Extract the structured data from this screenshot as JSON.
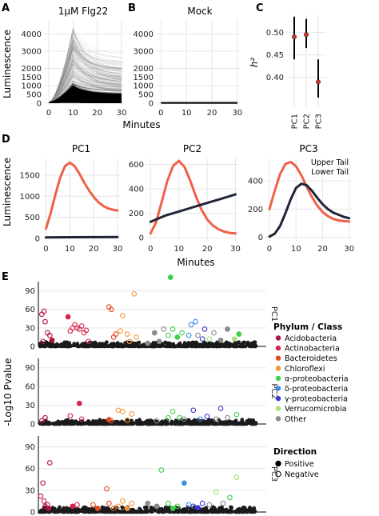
{
  "panel_labels": {
    "A": "A",
    "B": "B",
    "C": "C",
    "D": "D",
    "E": "E"
  },
  "colors": {
    "upper": "#f0604a",
    "lower": "#1e2537",
    "ink": "#111111",
    "grid": "#e6e6e6"
  },
  "chart_data": [
    {
      "id": "A",
      "type": "line",
      "title": "1µM Flg22",
      "xlabel": "",
      "ylabel": "Luminescence",
      "xlim": [
        -2,
        31
      ],
      "ylim": [
        -150,
        4800
      ],
      "xticks": [
        0,
        10,
        20,
        30
      ],
      "yticks": [
        0,
        500,
        1000,
        1500,
        2000,
        3000,
        4000
      ],
      "description_values": {
        "peak_minute": 10,
        "max_trace": 4300,
        "dense_band_max": 1000
      }
    },
    {
      "id": "B",
      "type": "line",
      "title": "Mock",
      "xlabel": "",
      "ylabel": "",
      "xlim": [
        -2,
        31
      ],
      "ylim": [
        -150,
        4800
      ],
      "xticks": [
        0,
        10,
        20,
        30
      ],
      "yticks": [
        0,
        500,
        1000,
        1500,
        2000,
        3000,
        4000
      ],
      "description_values": {
        "flat_level": 60
      }
    },
    {
      "id": "AB-shared",
      "type": "axis",
      "xlabel": "Minutes"
    },
    {
      "id": "C",
      "type": "scatter",
      "ylabel": "h²",
      "categories": [
        "PC1",
        "PC2",
        "PC3"
      ],
      "values": [
        0.49,
        0.495,
        0.39
      ],
      "error_low": [
        0.44,
        0.465,
        0.355
      ],
      "error_high": [
        0.535,
        0.53,
        0.44
      ],
      "ylim": [
        0.33,
        0.54
      ],
      "yticks": [
        0.4,
        0.45,
        0.5
      ]
    },
    {
      "id": "D1",
      "type": "line",
      "title": "PC1",
      "ylabel": "Luminescence",
      "xlim": [
        -1.5,
        31
      ],
      "ylim": [
        -60,
        1900
      ],
      "xticks": [
        0,
        10,
        20,
        30
      ],
      "yticks": [
        0,
        500,
        1000,
        1500
      ],
      "series": [
        {
          "name": "Upper Tail",
          "color_key": "upper",
          "x": [
            0,
            2,
            4,
            6,
            8,
            10,
            12,
            14,
            16,
            18,
            20,
            22,
            24,
            26,
            28,
            30
          ],
          "y": [
            230,
            600,
            1050,
            1450,
            1720,
            1800,
            1720,
            1540,
            1330,
            1140,
            980,
            860,
            770,
            710,
            680,
            660
          ]
        },
        {
          "name": "Lower Tail",
          "color_key": "lower",
          "x": [
            0,
            10,
            20,
            30
          ],
          "y": [
            20,
            25,
            28,
            30
          ]
        }
      ]
    },
    {
      "id": "D2",
      "type": "line",
      "title": "PC2",
      "ylabel": "",
      "xlim": [
        -1.5,
        31
      ],
      "ylim": [
        -25,
        650
      ],
      "xticks": [
        0,
        10,
        20,
        30
      ],
      "yticks": [
        0,
        200,
        400,
        600
      ],
      "series": [
        {
          "name": "Upper Tail",
          "color_key": "upper",
          "x": [
            0,
            2,
            4,
            6,
            8,
            10,
            12,
            14,
            16,
            18,
            20,
            22,
            24,
            26,
            28,
            30
          ],
          "y": [
            35,
            130,
            300,
            470,
            590,
            630,
            580,
            470,
            340,
            230,
            150,
            100,
            70,
            50,
            40,
            35
          ]
        },
        {
          "name": "Lower Tail",
          "color_key": "lower",
          "x": [
            0,
            5,
            10,
            15,
            20,
            25,
            30
          ],
          "y": [
            130,
            180,
            215,
            250,
            285,
            320,
            355
          ]
        }
      ]
    },
    {
      "id": "D3",
      "type": "line",
      "title": "PC3",
      "ylabel": "",
      "xlim": [
        -1.5,
        31
      ],
      "ylim": [
        -25,
        560
      ],
      "xticks": [
        0,
        10,
        20,
        30
      ],
      "yticks": [
        0,
        200,
        400
      ],
      "legend": {
        "position": "top-right",
        "entries": [
          "Upper Tail",
          "Lower Tail"
        ]
      },
      "series": [
        {
          "name": "Upper Tail",
          "color_key": "upper",
          "x": [
            0,
            2,
            4,
            6,
            8,
            10,
            12,
            14,
            16,
            18,
            20,
            22,
            24,
            26,
            28,
            30
          ],
          "y": [
            200,
            330,
            450,
            520,
            535,
            505,
            440,
            360,
            285,
            225,
            180,
            150,
            130,
            120,
            115,
            112
          ]
        },
        {
          "name": "Lower Tail",
          "color_key": "lower",
          "x": [
            0,
            2,
            4,
            6,
            8,
            10,
            12,
            14,
            16,
            18,
            20,
            22,
            24,
            26,
            28,
            30
          ],
          "y": [
            5,
            25,
            80,
            170,
            270,
            350,
            380,
            370,
            330,
            280,
            235,
            200,
            175,
            160,
            145,
            135
          ]
        }
      ]
    },
    {
      "id": "D-shared",
      "type": "axis",
      "xlabel": "Minutes"
    },
    {
      "id": "E",
      "type": "scatter",
      "ylabel": "-Log10 Pvalue",
      "xlim": [
        0,
        100
      ],
      "ylim": [
        0,
        105
      ],
      "yticks": [
        0,
        30,
        60,
        90
      ],
      "facets": [
        "PC1",
        "PC2",
        "PC3"
      ],
      "legend_phylum_title": "Phylum / Class",
      "phyla": [
        {
          "name": "Acidobacteria",
          "color": "#b3123b"
        },
        {
          "name": "Actinobacteria",
          "color": "#d6244e"
        },
        {
          "name": "Bacteroidetes",
          "color": "#e24a1f"
        },
        {
          "name": "Chloroflexi",
          "color": "#f5963c"
        },
        {
          "name": "α-proteobacteria",
          "color": "#3fd04a"
        },
        {
          "name": "δ-proteobacteria",
          "color": "#3a8ee6"
        },
        {
          "name": "γ-proteobacteria",
          "color": "#3a3ad0"
        },
        {
          "name": "Verrucomicrobia",
          "color": "#a8e07a"
        },
        {
          "name": "Other",
          "color": "#8a8a8a"
        }
      ],
      "legend_direction_title": "Direction",
      "directions": [
        {
          "name": "Positive",
          "filled": true
        },
        {
          "name": "Negative",
          "filled": false
        }
      ],
      "points": {
        "PC1": [
          [
            1.5,
            52,
            0,
            0
          ],
          [
            2.5,
            57,
            0,
            0
          ],
          [
            3,
            40,
            0,
            0
          ],
          [
            4,
            22,
            0,
            0
          ],
          [
            5,
            18,
            0,
            0
          ],
          [
            2,
            8,
            0,
            0
          ],
          [
            6,
            10,
            0,
            1
          ],
          [
            13,
            48,
            1,
            1
          ],
          [
            14,
            25,
            1,
            0
          ],
          [
            15,
            30,
            1,
            0
          ],
          [
            16,
            35,
            1,
            0
          ],
          [
            17,
            30,
            1,
            0
          ],
          [
            18,
            28,
            1,
            0
          ],
          [
            19,
            33,
            1,
            0
          ],
          [
            20,
            22,
            1,
            0
          ],
          [
            21,
            26,
            1,
            0
          ],
          [
            22,
            8,
            1,
            0
          ],
          [
            31,
            64,
            2,
            0
          ],
          [
            32,
            60,
            2,
            0
          ],
          [
            33,
            15,
            2,
            0
          ],
          [
            34,
            20,
            2,
            0
          ],
          [
            36,
            25,
            3,
            0
          ],
          [
            37,
            50,
            3,
            0
          ],
          [
            39,
            20,
            3,
            0
          ],
          [
            40,
            8,
            3,
            0
          ],
          [
            42,
            85,
            3,
            0
          ],
          [
            43,
            15,
            3,
            0
          ],
          [
            48,
            5,
            8,
            1
          ],
          [
            51,
            22,
            8,
            1
          ],
          [
            53,
            8,
            8,
            1
          ],
          [
            55,
            28,
            8,
            0
          ],
          [
            57,
            18,
            4,
            0
          ],
          [
            58,
            112,
            4,
            1
          ],
          [
            59,
            28,
            4,
            0
          ],
          [
            61,
            15,
            4,
            1
          ],
          [
            63,
            22,
            4,
            0
          ],
          [
            66,
            18,
            5,
            0
          ],
          [
            67,
            35,
            5,
            0
          ],
          [
            69,
            40,
            5,
            0
          ],
          [
            70,
            18,
            8,
            0
          ],
          [
            72,
            12,
            6,
            0
          ],
          [
            73,
            28,
            6,
            0
          ],
          [
            75,
            12,
            7,
            0
          ],
          [
            77,
            22,
            8,
            0
          ],
          [
            80,
            10,
            8,
            1
          ],
          [
            83,
            28,
            8,
            1
          ],
          [
            86,
            12,
            7,
            1
          ],
          [
            88,
            20,
            4,
            1
          ]
        ],
        "PC2": [
          [
            1.5,
            5,
            0,
            0
          ],
          [
            3,
            10,
            0,
            0
          ],
          [
            14,
            13,
            1,
            0
          ],
          [
            18,
            33,
            1,
            1
          ],
          [
            19,
            8,
            1,
            0
          ],
          [
            31,
            7,
            2,
            1
          ],
          [
            32,
            5,
            2,
            0
          ],
          [
            35,
            22,
            3,
            0
          ],
          [
            37,
            20,
            3,
            0
          ],
          [
            39,
            6,
            3,
            0
          ],
          [
            41,
            16,
            3,
            0
          ],
          [
            52,
            5,
            8,
            0
          ],
          [
            57,
            10,
            4,
            0
          ],
          [
            59,
            20,
            4,
            0
          ],
          [
            62,
            10,
            4,
            0
          ],
          [
            64,
            8,
            8,
            0
          ],
          [
            68,
            22,
            6,
            0
          ],
          [
            71,
            8,
            5,
            0
          ],
          [
            74,
            12,
            6,
            0
          ],
          [
            78,
            8,
            8,
            0
          ],
          [
            80,
            25,
            6,
            0
          ],
          [
            83,
            10,
            8,
            0
          ],
          [
            87,
            15,
            4,
            0
          ]
        ],
        "PC3": [
          [
            1,
            22,
            0,
            0
          ],
          [
            2,
            40,
            0,
            0
          ],
          [
            2.5,
            15,
            0,
            0
          ],
          [
            3,
            8,
            0,
            0
          ],
          [
            4,
            10,
            0,
            0
          ],
          [
            5,
            68,
            0,
            0
          ],
          [
            4.5,
            5,
            0,
            1
          ],
          [
            15,
            8,
            1,
            1
          ],
          [
            17,
            10,
            1,
            0
          ],
          [
            24,
            10,
            2,
            0
          ],
          [
            26,
            5,
            2,
            1
          ],
          [
            30,
            32,
            2,
            0
          ],
          [
            31,
            12,
            2,
            0
          ],
          [
            33,
            5,
            2,
            0
          ],
          [
            35,
            8,
            3,
            0
          ],
          [
            37,
            15,
            3,
            0
          ],
          [
            39,
            5,
            3,
            1
          ],
          [
            41,
            12,
            3,
            0
          ],
          [
            48,
            12,
            8,
            1
          ],
          [
            52,
            8,
            8,
            1
          ],
          [
            54,
            58,
            4,
            0
          ],
          [
            57,
            12,
            4,
            0
          ],
          [
            59,
            5,
            4,
            1
          ],
          [
            61,
            8,
            4,
            0
          ],
          [
            64,
            40,
            5,
            1
          ],
          [
            66,
            10,
            5,
            0
          ],
          [
            68,
            8,
            6,
            0
          ],
          [
            70,
            6,
            6,
            1
          ],
          [
            72,
            12,
            6,
            0
          ],
          [
            75,
            10,
            8,
            0
          ],
          [
            78,
            28,
            7,
            0
          ],
          [
            81,
            12,
            8,
            0
          ],
          [
            84,
            20,
            4,
            0
          ],
          [
            87,
            48,
            7,
            0
          ]
        ]
      }
    }
  ]
}
